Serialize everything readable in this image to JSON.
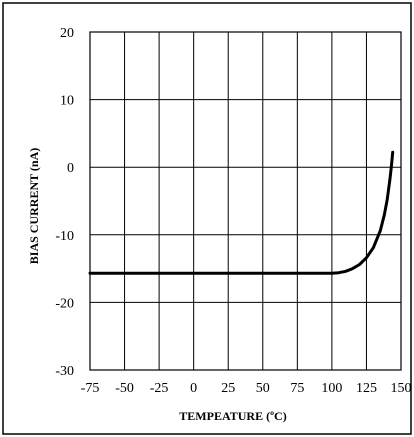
{
  "chart_data": {
    "type": "line",
    "title": "",
    "xlabel": "TEMPEATURE (ºC)",
    "ylabel": "BIAS CURRENT   (nA)",
    "xlim": [
      -75,
      150
    ],
    "ylim": [
      -30,
      20
    ],
    "x_ticks": [
      "-75",
      "-50",
      "-25",
      "0",
      "25",
      "50",
      "75",
      "100",
      "125",
      "150"
    ],
    "y_ticks": [
      "20",
      "10",
      "0",
      "-10",
      "-20",
      "-30"
    ],
    "grid": true,
    "legend": "none",
    "series": [
      {
        "x": [
          -75,
          0,
          50,
          100,
          105,
          110,
          115,
          120,
          125,
          130,
          135,
          138,
          140,
          142,
          143,
          144
        ],
        "y": [
          -15.7,
          -15.7,
          -15.7,
          -15.7,
          -15.6,
          -15.4,
          -15.0,
          -14.4,
          -13.4,
          -11.9,
          -9.4,
          -7.0,
          -4.8,
          -1.8,
          0.0,
          2.2
        ],
        "color": "#000000"
      }
    ]
  }
}
